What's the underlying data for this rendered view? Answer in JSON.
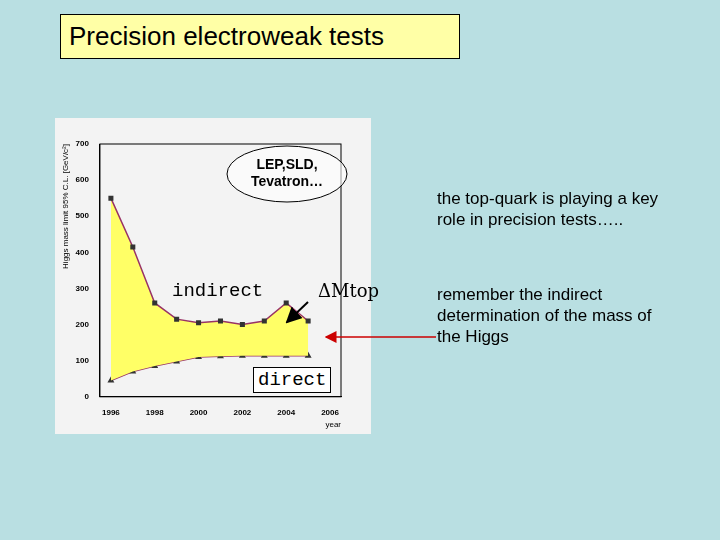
{
  "title": "Precision electroweak tests",
  "text": [
    "the top-quark is playing a key role in precision tests…..",
    "remember the indirect determination of the mass of the Higgs"
  ],
  "chart_data": {
    "type": "line",
    "x": [
      1996,
      1997,
      1998,
      1999,
      2000,
      2001,
      2002,
      2003,
      2004,
      2005
    ],
    "series": [
      {
        "name": "indirect",
        "color": "#993366",
        "marker": "square",
        "values": [
          550,
          415,
          260,
          215,
          205,
          210,
          200,
          210,
          260,
          210
        ]
      },
      {
        "name": "direct",
        "color": "#993366",
        "marker": "triangle",
        "values": [
          45,
          70,
          85,
          98,
          110,
          112,
          114,
          114,
          114,
          114
        ]
      }
    ],
    "xlim": [
      1995.5,
      2006.5
    ],
    "xticks": [
      1996,
      1998,
      2000,
      2002,
      2004,
      2006
    ],
    "ylim": [
      0,
      700
    ],
    "yticks": [
      0,
      100,
      200,
      300,
      400,
      500,
      600,
      700
    ],
    "x_label": "year",
    "y_label": "Higgs mass limit 95% C.L. [GeV/c²]",
    "annotations": [
      "LEP,SLD, Tevatron…",
      "ΔMtop"
    ],
    "grid": false
  }
}
